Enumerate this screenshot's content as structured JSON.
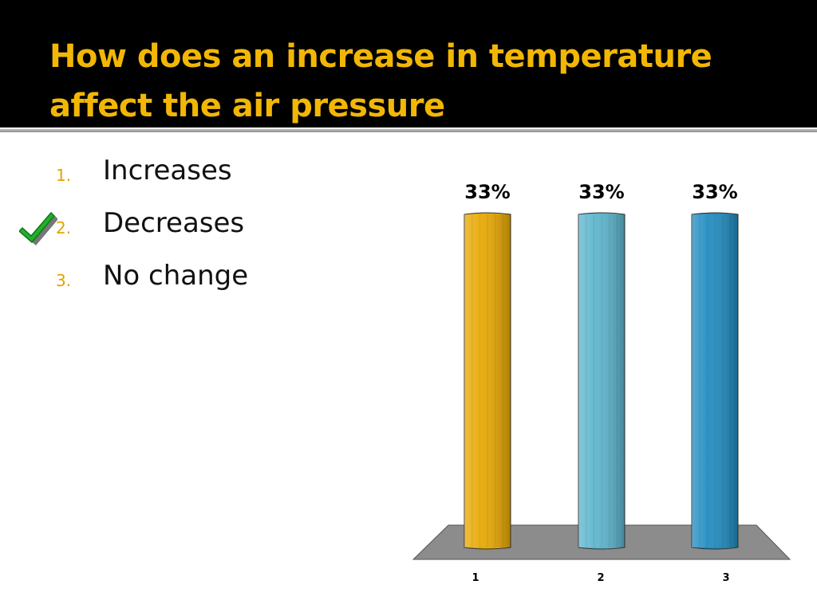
{
  "slide": {
    "title": "How does an increase in temperature affect the air pressure"
  },
  "answers": [
    {
      "number": "1.",
      "text": "Increases"
    },
    {
      "number": "2.",
      "text": "Decreases"
    },
    {
      "number": "3.",
      "text": "No change"
    }
  ],
  "correct_answer_index": 2,
  "icons": {
    "correct_marker": "checkmark-icon"
  },
  "colors": {
    "title": "#f2b705",
    "numbering": "#e6a100",
    "title_bar": "#000000",
    "floor": "#8c8c8c",
    "bar_1": "#e8a700",
    "bar_2": "#5ab4cc",
    "bar_3": "#1e8abf"
  },
  "chart_data": {
    "type": "bar",
    "categories": [
      "1",
      "2",
      "3"
    ],
    "values": [
      33,
      33,
      33
    ],
    "data_labels": [
      "33%",
      "33%",
      "33%"
    ],
    "ylim": [
      0,
      33
    ],
    "grid": false,
    "legend": "none"
  }
}
